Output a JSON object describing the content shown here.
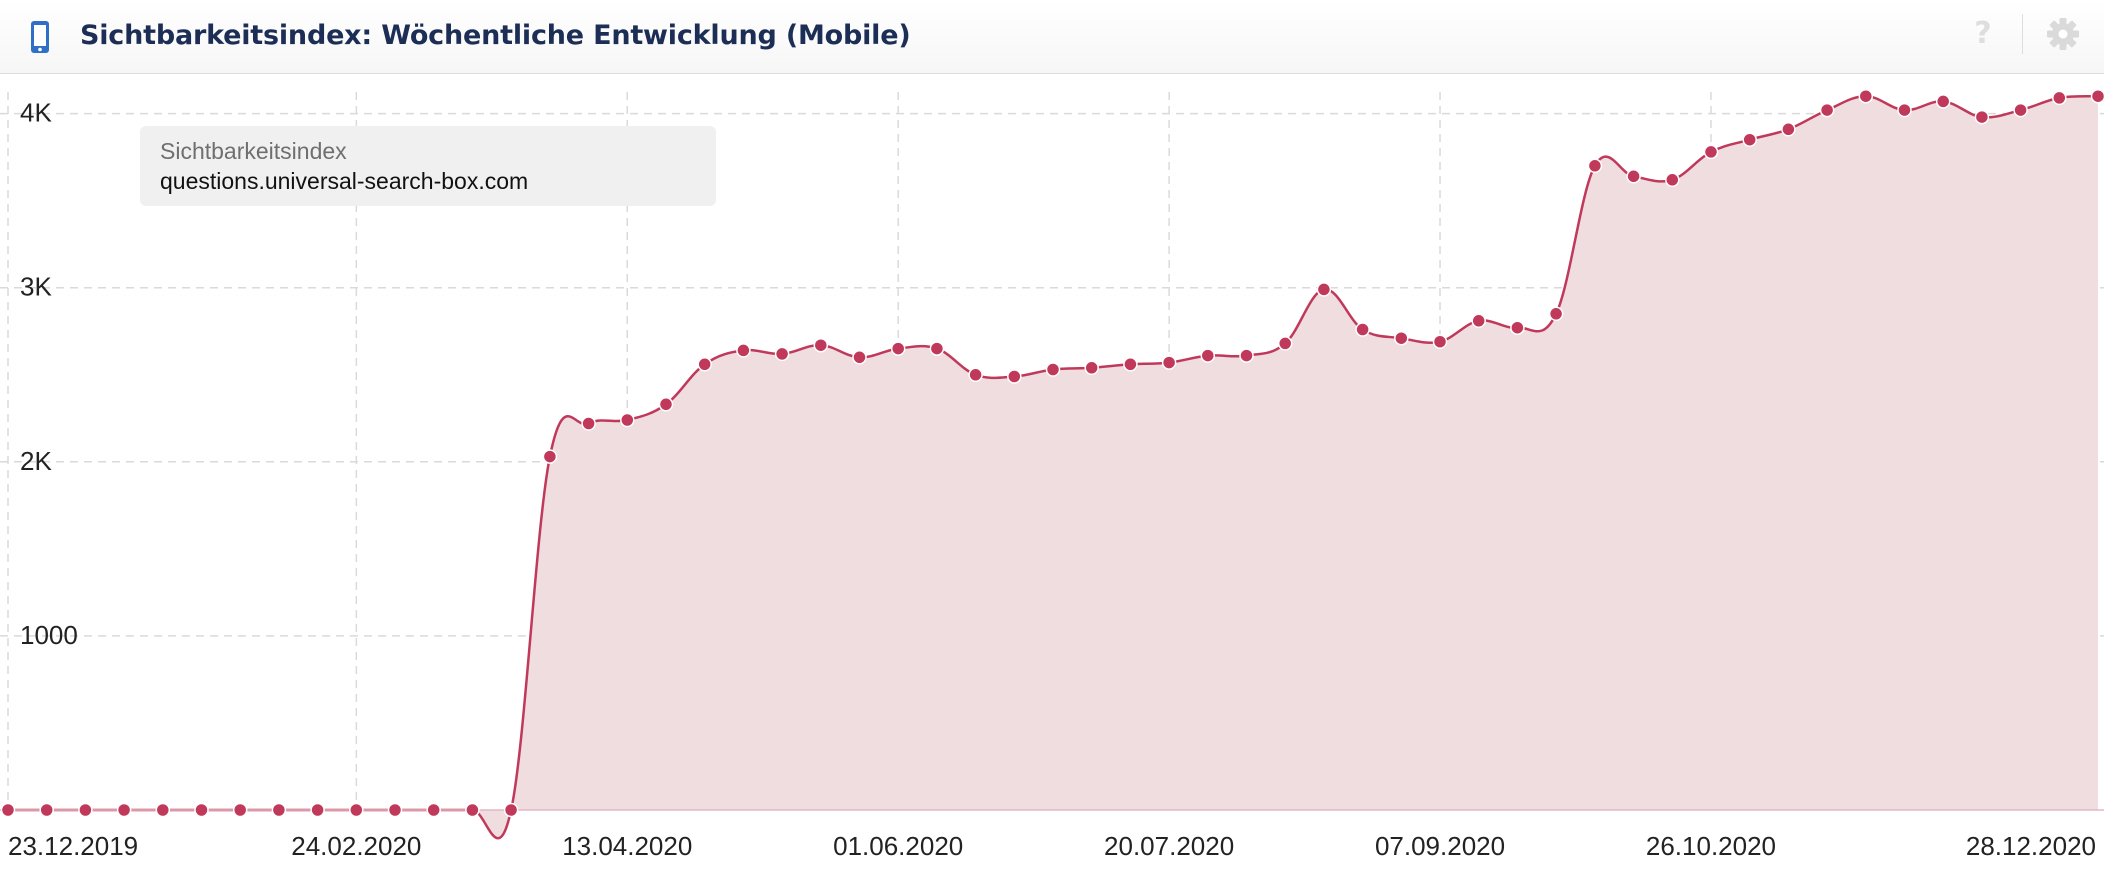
{
  "header": {
    "title": "Sichtbarkeitsindex: Wöchentliche Entwicklung (Mobile)",
    "device_icon": "smartphone-icon",
    "help_icon": "question-icon",
    "help_label": "?",
    "settings_icon": "gear-icon"
  },
  "legend": {
    "label": "Sichtbarkeitsindex",
    "domain": "questions.universal-search-box.com"
  },
  "colors": {
    "line": "#c0395a",
    "fill": "#f0dde0",
    "title": "#1c2e55",
    "icon": "#2f6fc6"
  },
  "chart_data": {
    "type": "area",
    "title": "",
    "xlabel": "",
    "ylabel": "",
    "ylim": [
      0,
      4150
    ],
    "grid": true,
    "legend_position": "top-left",
    "y_ticks": [
      {
        "value": 1000,
        "label": "1000"
      },
      {
        "value": 2000,
        "label": "2K"
      },
      {
        "value": 3000,
        "label": "3K"
      },
      {
        "value": 4000,
        "label": "4K"
      }
    ],
    "x_tick_labels": [
      "23.12.2019",
      "24.02.2020",
      "13.04.2020",
      "01.06.2020",
      "20.07.2020",
      "07.09.2020",
      "26.10.2020",
      "28.12.2020"
    ],
    "x_tick_dates": [
      "2019-12-23",
      "2020-02-24",
      "2020-04-13",
      "2020-06-01",
      "2020-07-20",
      "2020-09-07",
      "2020-10-26",
      "2020-12-28"
    ],
    "x_range": [
      "2019-12-23",
      "2021-01-04"
    ],
    "series": [
      {
        "name": "",
        "x": [
          "2019-12-23",
          "2019-12-30",
          "2020-01-06",
          "2020-01-13",
          "2020-01-20",
          "2020-01-27",
          "2020-02-03",
          "2020-02-10",
          "2020-02-17",
          "2020-02-24",
          "2020-03-02",
          "2020-03-09",
          "2020-03-16",
          "2020-03-23",
          "2020-03-30",
          "2020-04-06",
          "2020-04-13",
          "2020-04-20",
          "2020-04-27",
          "2020-05-04",
          "2020-05-11",
          "2020-05-18",
          "2020-05-25",
          "2020-06-01",
          "2020-06-08",
          "2020-06-15",
          "2020-06-22",
          "2020-06-29",
          "2020-07-06",
          "2020-07-13",
          "2020-07-20",
          "2020-07-27",
          "2020-08-03",
          "2020-08-10",
          "2020-08-17",
          "2020-08-24",
          "2020-08-31",
          "2020-09-07",
          "2020-09-14",
          "2020-09-21",
          "2020-09-28",
          "2020-10-05",
          "2020-10-12",
          "2020-10-19",
          "2020-10-26",
          "2020-11-02",
          "2020-11-09",
          "2020-11-16",
          "2020-11-23",
          "2020-11-30",
          "2020-12-07",
          "2020-12-14",
          "2020-12-21",
          "2020-12-28",
          "2021-01-04"
        ],
        "values": [
          0,
          0,
          0,
          0,
          0,
          0,
          0,
          0,
          0,
          0,
          0,
          0,
          0,
          0,
          2030,
          2220,
          2240,
          2330,
          2560,
          2640,
          2620,
          2670,
          2600,
          2650,
          2650,
          2500,
          2490,
          2530,
          2540,
          2560,
          2570,
          2610,
          2610,
          2680,
          2990,
          2760,
          2710,
          2690,
          2810,
          2770,
          2850,
          3700,
          3640,
          3620,
          3780,
          3850,
          3910,
          4020,
          4100,
          4020,
          4070,
          3980,
          4020,
          4090,
          4100
        ]
      }
    ]
  }
}
